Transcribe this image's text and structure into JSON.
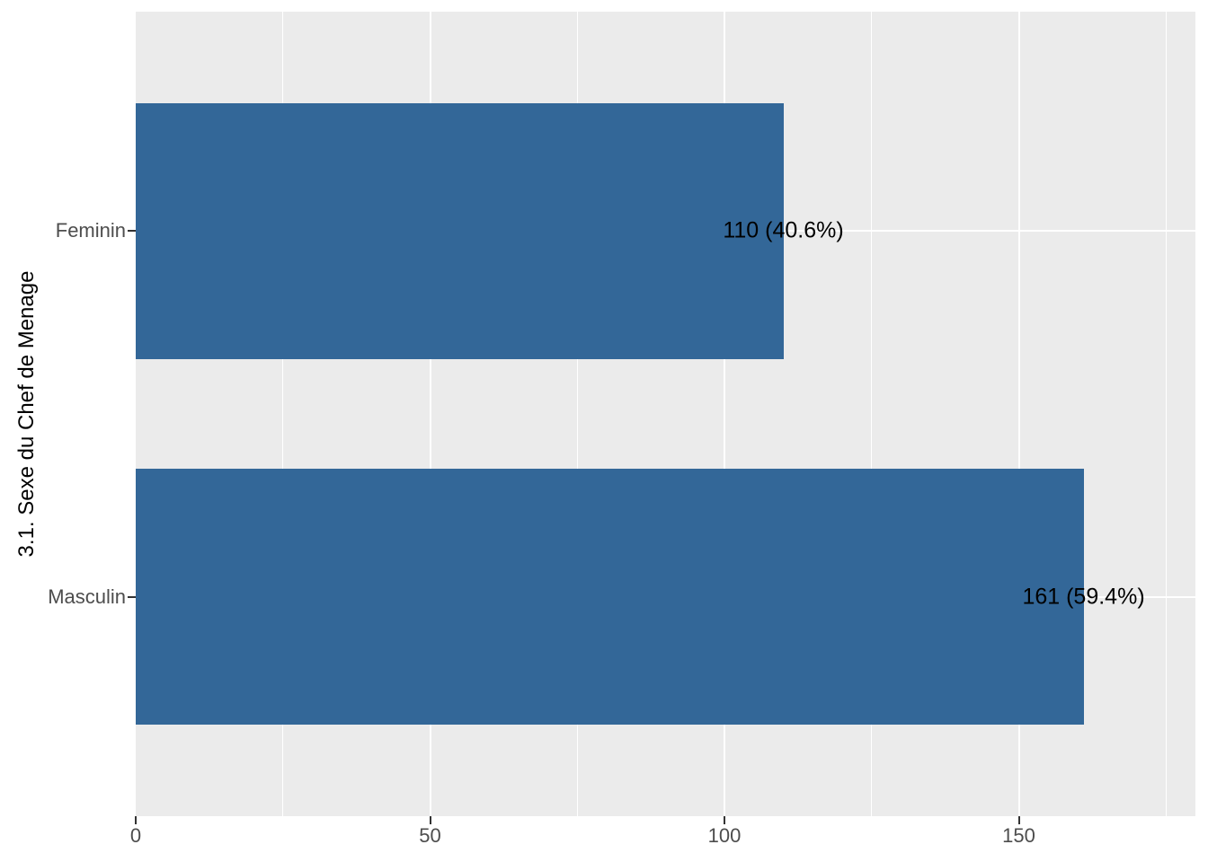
{
  "chart_data": {
    "type": "bar",
    "orientation": "horizontal",
    "title": "",
    "xlabel": "",
    "ylabel": "3.1. Sexe du Chef de Menage",
    "categories": [
      "Feminin",
      "Masculin"
    ],
    "values": [
      110,
      161
    ],
    "percentages": [
      40.6,
      59.4
    ],
    "bar_labels": [
      "110 (40.6%)",
      "161 (59.4%)"
    ],
    "xlim": [
      0,
      180
    ],
    "x_major_ticks": [
      0,
      50,
      100,
      150
    ],
    "x_major_tick_labels": [
      "0",
      "50",
      "100",
      "150"
    ],
    "x_minor_gridlines": [
      25,
      75,
      125,
      175
    ],
    "grid": "on",
    "legend": "none",
    "colors": {
      "bar_fill": "#336798",
      "panel_background": "#EBEBEB",
      "gridline": "#FFFFFF",
      "axis_text": "#4D4D4D",
      "tick_mark": "#333333",
      "bar_label_text": "#000000",
      "axis_title_text": "#000000",
      "figure_background": "#FFFFFF"
    }
  }
}
